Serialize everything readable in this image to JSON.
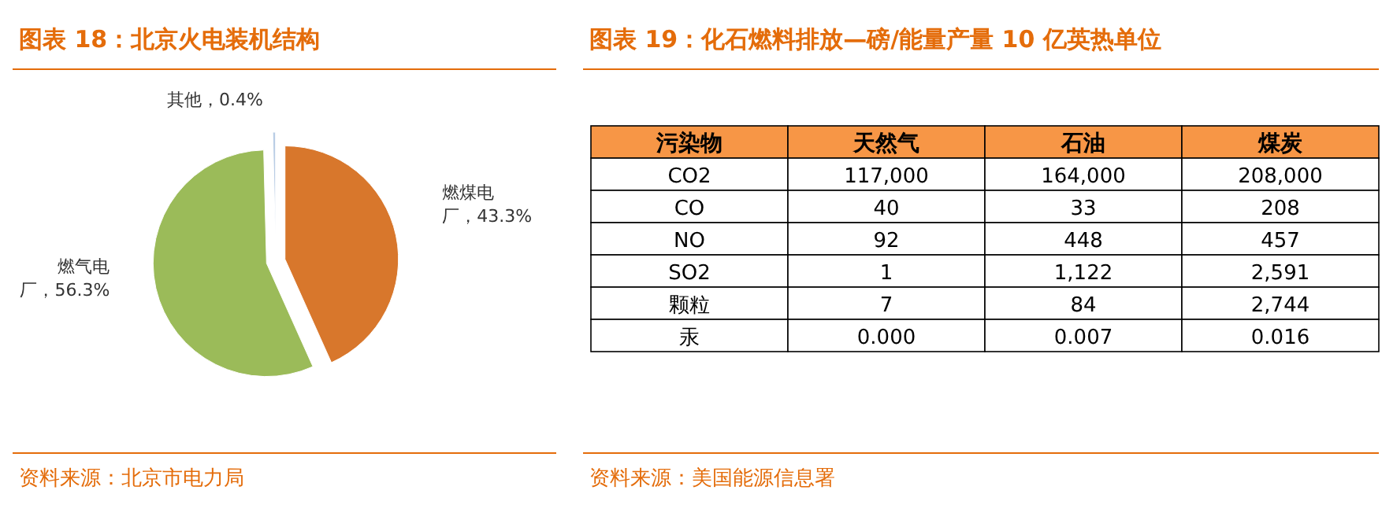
{
  "chart_data": [
    {
      "type": "pie",
      "title": "图表 18：北京火电装机结构",
      "categories": [
        "燃煤电厂",
        "燃气电厂",
        "其他"
      ],
      "values": [
        43.3,
        56.3,
        0.4
      ],
      "value_labels": [
        "43.3%",
        "56.3%",
        "0.4%"
      ],
      "colors": [
        "#d8772c",
        "#9bbb59",
        "#b9cde5"
      ],
      "annotations": [
        "资料来源：北京市电力局"
      ]
    },
    {
      "type": "other",
      "title": "图表 19：化石燃料排放—磅/能量产量 10 亿英热单位",
      "categories": [
        "污染物",
        "天然气",
        "石油",
        "煤炭"
      ],
      "y_categories": [
        "CO2",
        "CO",
        "NO",
        "SO2",
        "颗粒",
        "汞"
      ],
      "cell_labels": [
        [
          "117,000",
          "164,000",
          "208,000"
        ],
        [
          "40",
          "33",
          "208"
        ],
        [
          "92",
          "448",
          "457"
        ],
        [
          "1",
          "1,122",
          "2,591"
        ],
        [
          "7",
          "84",
          "2,744"
        ],
        [
          "0.000",
          "0.007",
          "0.016"
        ]
      ],
      "annotations": [
        "资料来源：美国能源信息署"
      ]
    }
  ]
}
